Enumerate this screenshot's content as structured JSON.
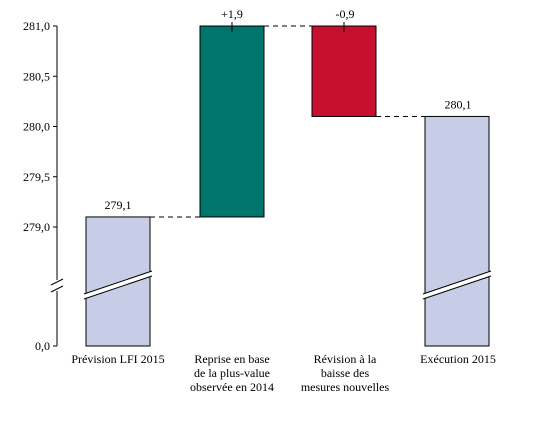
{
  "chart_data": {
    "type": "bar",
    "subtype": "waterfall",
    "y_axis": {
      "ticks": [
        "281,0",
        "280,5",
        "280,0",
        "279,5",
        "279,0",
        "0,0"
      ],
      "tick_values": [
        281.0,
        280.5,
        280.0,
        279.5,
        279.0,
        0.0
      ],
      "broken_between": [
        0.0,
        279.0
      ]
    },
    "categories": [
      [
        "Prévision LFI 2015"
      ],
      [
        "Reprise en base",
        "de la plus-value",
        "observée en 2014"
      ],
      [
        "Révision à la",
        "baisse des",
        "mesures nouvelles"
      ],
      [
        "Exécution 2015"
      ]
    ],
    "bars": [
      {
        "kind": "total",
        "start": 0.0,
        "end": 279.1,
        "label": "279,1",
        "color": "#c7cde6",
        "broken": true
      },
      {
        "kind": "increase",
        "start": 279.1,
        "end": 281.0,
        "label": "+1,9",
        "color": "#00756d",
        "broken": false
      },
      {
        "kind": "decrease",
        "start": 281.0,
        "end": 280.1,
        "label": "-0,9",
        "color": "#c8102e",
        "broken": false
      },
      {
        "kind": "total",
        "start": 0.0,
        "end": 280.1,
        "label": "280,1",
        "color": "#c7cde6",
        "broken": true
      }
    ],
    "connectors": "dashed",
    "grid": false,
    "legend": "none"
  }
}
